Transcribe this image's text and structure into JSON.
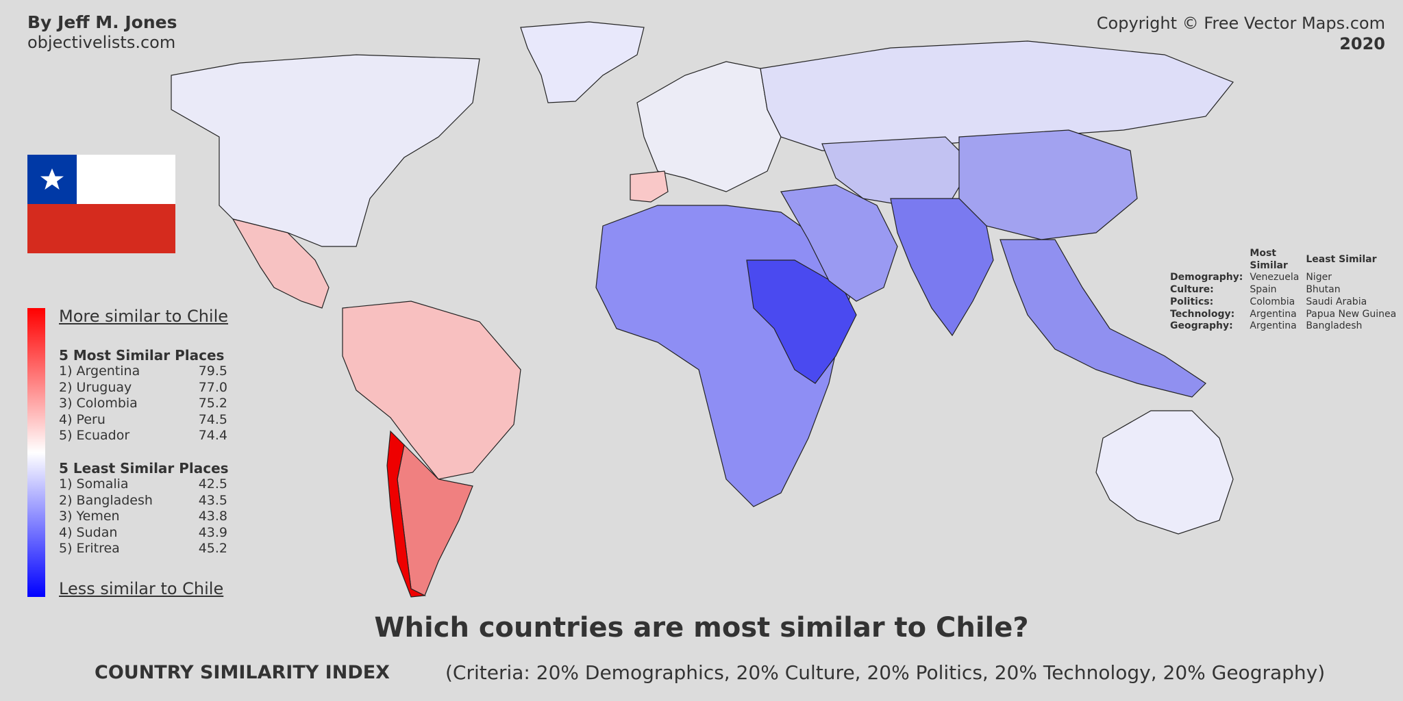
{
  "header": {
    "author": "By Jeff M. Jones",
    "site": "objectivelists.com",
    "copyright": "Copyright © Free Vector Maps.com",
    "year": "2020"
  },
  "flag": {
    "country": "Chile",
    "blue": "#0039a6",
    "white": "#ffffff",
    "red": "#d52b1e"
  },
  "legend": {
    "more_label": "More similar to Chile",
    "less_label": "Less similar to Chile",
    "high_color": "#ff0000",
    "neutral_color": "#ffffff",
    "low_color": "#0000ff"
  },
  "most_similar": {
    "heading": "5 Most Similar Places",
    "items": [
      {
        "label": "1) Argentina",
        "score": "79.5"
      },
      {
        "label": "2) Uruguay",
        "score": "77.0"
      },
      {
        "label": "3) Colombia",
        "score": "75.2"
      },
      {
        "label": "4) Peru",
        "score": "74.5"
      },
      {
        "label": "5) Ecuador",
        "score": "74.4"
      }
    ]
  },
  "least_similar": {
    "heading": "5 Least Similar Places",
    "items": [
      {
        "label": "1) Somalia",
        "score": "42.5"
      },
      {
        "label": "2) Bangladesh",
        "score": "43.5"
      },
      {
        "label": "3) Yemen",
        "score": "43.8"
      },
      {
        "label": "4) Sudan",
        "score": "43.9"
      },
      {
        "label": "5) Eritrea",
        "score": "45.2"
      }
    ]
  },
  "criteria_table": {
    "col_most": "Most Similar",
    "col_least": "Least Similar",
    "rows": [
      {
        "label": "Demography:",
        "most": "Venezuela",
        "least": "Niger"
      },
      {
        "label": "Culture:",
        "most": "Spain",
        "least": "Bhutan"
      },
      {
        "label": "Politics:",
        "most": "Colombia",
        "least": "Saudi Arabia"
      },
      {
        "label": "Technology:",
        "most": "Argentina",
        "least": "Papua New Guinea"
      },
      {
        "label": "Geography:",
        "most": "Argentina",
        "least": "Bangladesh"
      }
    ]
  },
  "footer": {
    "title": "Which countries are most similar to Chile?",
    "index_label": "COUNTRY SIMILARITY INDEX",
    "criteria": "(Criteria: 20% Demographics, 20% Culture, 20% Politics, 20% Technology, 20% Geography)"
  },
  "map": {
    "background": "#dcdcdc",
    "regions": [
      {
        "name": "chile",
        "color": "#ee0000"
      },
      {
        "name": "argentina",
        "color": "#f08080"
      },
      {
        "name": "south-america-north",
        "color": "#f8c0c0"
      },
      {
        "name": "mexico-central-america",
        "color": "#f7c2c2"
      },
      {
        "name": "north-america",
        "color": "#eaeaf8"
      },
      {
        "name": "greenland",
        "color": "#e8e8fb"
      },
      {
        "name": "europe",
        "color": "#ececf6"
      },
      {
        "name": "spain",
        "color": "#f9c8c8"
      },
      {
        "name": "russia",
        "color": "#dedef8"
      },
      {
        "name": "africa",
        "color": "#8e8ef4"
      },
      {
        "name": "horn-of-africa",
        "color": "#4a4af0"
      },
      {
        "name": "middle-east",
        "color": "#9a9af2"
      },
      {
        "name": "central-asia",
        "color": "#c2c2f2"
      },
      {
        "name": "china",
        "color": "#a2a2f0"
      },
      {
        "name": "south-asia",
        "color": "#7a7af0"
      },
      {
        "name": "southeast-asia",
        "color": "#9090f0"
      },
      {
        "name": "australia",
        "color": "#ececfa"
      }
    ]
  }
}
